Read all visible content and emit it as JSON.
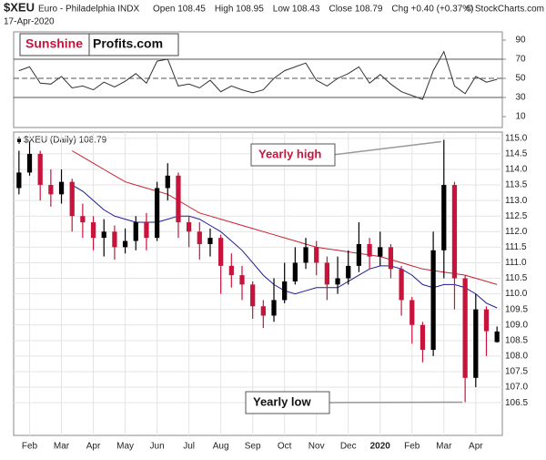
{
  "header": {
    "symbol": "$XEU",
    "name": "Euro - Philadelphia INDX",
    "date": "17-Apr-2020",
    "quote": [
      "Open 108.45",
      "High 108.95",
      "Low 108.43",
      "Close 108.79",
      "Chg +0.40 (+0.37%)"
    ],
    "copyright": "© StockCharts.com",
    "logo": [
      "Sunshine",
      "Profits.com"
    ]
  },
  "chart_data": [
    {
      "type": "line",
      "color": "#333333",
      "values": [
        58,
        62,
        45,
        44,
        52,
        40,
        42,
        38,
        46,
        41,
        47,
        55,
        45,
        68,
        70,
        42,
        44,
        40,
        48,
        36,
        42,
        38,
        35,
        38,
        50,
        58,
        62,
        66,
        48,
        42,
        50,
        55,
        62,
        45,
        54,
        44,
        36,
        32,
        28,
        58,
        78,
        42,
        34,
        52,
        46,
        49
      ],
      "ylim": [
        -1.4,
        98.6
      ],
      "yticks": [
        10,
        30,
        50,
        70,
        90
      ],
      "levels": [
        30,
        50,
        70
      ]
    },
    {
      "type": "candlestick",
      "title": "$XEU (Daily) 108.79",
      "categories": [
        null,
        "Feb",
        null,
        null,
        "Mar",
        null,
        null,
        "Apr",
        null,
        null,
        "May",
        null,
        null,
        "Jun",
        null,
        null,
        "Jul",
        null,
        null,
        "Aug",
        null,
        null,
        "Sep",
        null,
        null,
        "Oct",
        null,
        null,
        "Nov",
        null,
        null,
        "Dec",
        null,
        null,
        "2020",
        null,
        null,
        "Feb",
        null,
        null,
        "Mar",
        null,
        null,
        "Apr",
        null,
        null
      ],
      "open": [
        113.4,
        113.9,
        114.5,
        113.5,
        113.2,
        113.6,
        112.5,
        112.3,
        111.8,
        112.0,
        111.5,
        111.7,
        112.3,
        111.8,
        113.4,
        113.8,
        112.3,
        112.0,
        111.6,
        111.8,
        110.9,
        110.6,
        110.3,
        109.6,
        109.3,
        109.8,
        110.4,
        111.0,
        111.5,
        111.0,
        110.3,
        110.5,
        110.9,
        111.6,
        111.2,
        111.5,
        110.8,
        109.8,
        109.0,
        108.2,
        111.4,
        113.5,
        110.5,
        107.3,
        109.5,
        108.45
      ],
      "high": [
        114.6,
        114.9,
        114.6,
        114.0,
        114.0,
        113.7,
        112.9,
        112.5,
        112.4,
        112.2,
        112.1,
        112.5,
        112.6,
        113.6,
        114.2,
        113.9,
        112.5,
        112.3,
        112.1,
        111.9,
        111.3,
        110.9,
        110.4,
        109.8,
        110.5,
        111.0,
        111.5,
        111.8,
        111.7,
        111.2,
        111.2,
        111.4,
        112.3,
        111.8,
        112.0,
        111.6,
        110.9,
        109.9,
        109.1,
        112.0,
        114.95,
        113.6,
        110.6,
        110.0,
        109.6,
        108.95
      ],
      "low": [
        113.2,
        113.8,
        113.0,
        112.8,
        112.9,
        112.0,
        111.8,
        111.4,
        111.2,
        111.1,
        111.3,
        111.4,
        111.4,
        111.7,
        113.0,
        111.8,
        111.5,
        111.1,
        111.2,
        110.0,
        110.2,
        109.8,
        109.2,
        108.9,
        109.1,
        109.7,
        110.3,
        110.8,
        110.6,
        109.8,
        110.0,
        110.3,
        110.7,
        110.8,
        110.9,
        110.5,
        109.3,
        108.4,
        107.8,
        108.0,
        110.5,
        109.5,
        106.52,
        107.0,
        108.0,
        108.43
      ],
      "close": [
        113.9,
        114.5,
        113.5,
        113.2,
        113.6,
        112.5,
        112.3,
        111.8,
        112.0,
        111.5,
        111.7,
        112.3,
        111.8,
        113.4,
        113.8,
        112.3,
        112.0,
        111.6,
        111.8,
        110.9,
        110.6,
        110.3,
        109.6,
        109.3,
        109.8,
        110.4,
        111.0,
        111.5,
        111.0,
        110.3,
        110.5,
        110.9,
        111.6,
        111.2,
        111.5,
        110.8,
        109.8,
        109.0,
        108.2,
        111.4,
        113.5,
        110.5,
        107.3,
        109.5,
        108.8,
        108.79
      ],
      "up_color": "#000000",
      "down_color": "#c8143c",
      "series": [
        {
          "color": "#1a1a99",
          "values": [
            null,
            null,
            null,
            null,
            null,
            113.5,
            113.3,
            113.0,
            112.7,
            112.5,
            112.4,
            112.3,
            112.3,
            112.3,
            112.4,
            112.5,
            112.5,
            112.4,
            112.2,
            112.0,
            111.7,
            111.4,
            111.0,
            110.6,
            110.3,
            110.1,
            110.0,
            110.1,
            110.2,
            110.2,
            110.2,
            110.4,
            110.6,
            110.8,
            110.9,
            110.9,
            110.8,
            110.6,
            110.3,
            110.2,
            110.3,
            110.3,
            110.2,
            110.0,
            109.7,
            109.55
          ]
        },
        {
          "color": "#cc1f2f",
          "values": [
            null,
            null,
            null,
            null,
            null,
            114.6,
            114.4,
            114.2,
            114.0,
            113.8,
            113.6,
            113.5,
            113.4,
            113.3,
            113.2,
            113.0,
            112.8,
            112.6,
            112.5,
            112.4,
            112.3,
            112.2,
            112.1,
            112.0,
            111.9,
            111.8,
            111.7,
            111.6,
            111.5,
            111.45,
            111.4,
            111.35,
            111.3,
            111.25,
            111.2,
            111.1,
            111.0,
            110.9,
            110.8,
            110.75,
            110.7,
            110.65,
            110.6,
            110.5,
            110.4,
            110.3
          ]
        }
      ],
      "ylim": [
        105.45,
        115.2
      ],
      "yticks": [
        106.5,
        {
          "value": 107,
          "label": "107.0"
        },
        107.5,
        {
          "value": 108,
          "label": "108.0"
        },
        108.5,
        {
          "value": 109,
          "label": "109.0"
        },
        109.5,
        {
          "value": 110,
          "label": "110.0"
        },
        110.5,
        {
          "value": 111,
          "label": "111.0"
        },
        111.5,
        {
          "value": 112,
          "label": "112.0"
        },
        112.5,
        {
          "value": 113,
          "label": "113.0"
        },
        113.5,
        {
          "value": 114,
          "label": "114.0"
        },
        114.5,
        {
          "value": 115,
          "label": "115.0"
        }
      ],
      "annotations": [
        "Yearly high",
        "Yearly low"
      ]
    }
  ]
}
